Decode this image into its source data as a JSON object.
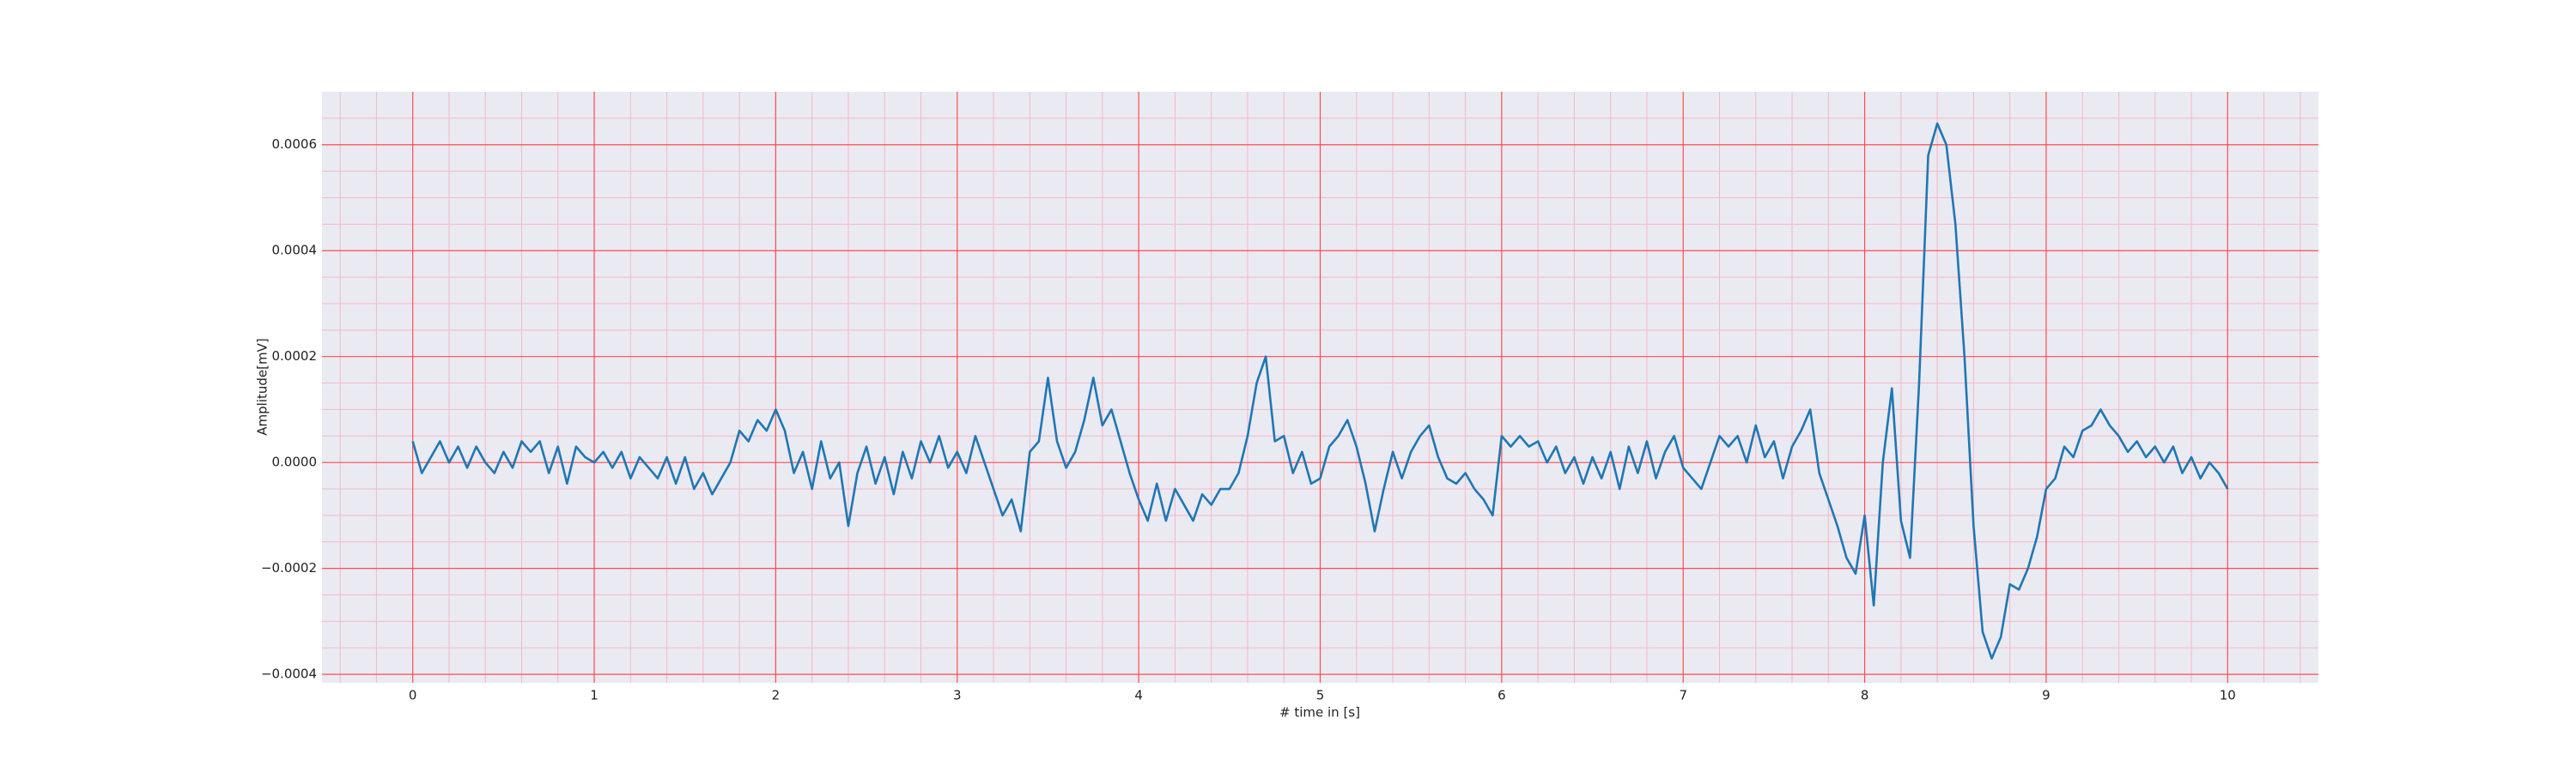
{
  "chart_data": {
    "type": "line",
    "xlabel": "# time in [s]",
    "ylabel": "Amplitude[mV]",
    "color": "#1f77b4",
    "background": "#eaeaf2",
    "grid": true,
    "grid_color": "#ff4d4d",
    "minor_grid_color": "#f7b6c6",
    "xlim": [
      -0.5,
      10.5
    ],
    "ylim": [
      -0.000416,
      0.0007
    ],
    "xticks": [
      0,
      1,
      2,
      3,
      4,
      5,
      6,
      7,
      8,
      9,
      10
    ],
    "yticks": [
      {
        "value": -0.0004,
        "label": "−0.0004"
      },
      {
        "value": -0.0002,
        "label": "−0.0002"
      },
      {
        "value": 0,
        "label": "0.0000"
      },
      0.0002,
      0.0004,
      0.0006
    ],
    "xminorticks": [
      -0.4,
      -0.2,
      0.2,
      0.4,
      0.6,
      0.8,
      1.2,
      1.4,
      1.6,
      1.8,
      2.2,
      2.4,
      2.6,
      2.8,
      3.2,
      3.4,
      3.6,
      3.8,
      4.2,
      4.4,
      4.6,
      4.8,
      5.2,
      5.4,
      5.6,
      5.8,
      6.2,
      6.4,
      6.6,
      6.8,
      7.2,
      7.4,
      7.6,
      7.8,
      8.2,
      8.4,
      8.6,
      8.8,
      9.2,
      9.4,
      9.6,
      9.8,
      10.2,
      10.4
    ],
    "yminorticks": [
      -0.00035,
      -0.0003,
      -0.00025,
      -0.00015,
      -0.0001,
      -5e-05,
      5e-05,
      0.0001,
      0.00015,
      0.00025,
      0.0003,
      0.00035,
      0.00045,
      0.0005,
      0.00055,
      0.00065
    ],
    "x": [
      0,
      0.05,
      0.1,
      0.15,
      0.2,
      0.25,
      0.3,
      0.35,
      0.4,
      0.45,
      0.5,
      0.55,
      0.6,
      0.65,
      0.7,
      0.75,
      0.8,
      0.85,
      0.9,
      0.95,
      1,
      1.05,
      1.1,
      1.15,
      1.2,
      1.25,
      1.3,
      1.35,
      1.4,
      1.45,
      1.5,
      1.55,
      1.6,
      1.65,
      1.7,
      1.75,
      1.8,
      1.85,
      1.9,
      1.95,
      2,
      2.05,
      2.1,
      2.15,
      2.2,
      2.25,
      2.3,
      2.35,
      2.4,
      2.45,
      2.5,
      2.55,
      2.6,
      2.65,
      2.7,
      2.75,
      2.8,
      2.85,
      2.9,
      2.95,
      3,
      3.05,
      3.1,
      3.15,
      3.2,
      3.25,
      3.3,
      3.35,
      3.4,
      3.45,
      3.5,
      3.55,
      3.6,
      3.65,
      3.7,
      3.75,
      3.8,
      3.85,
      3.9,
      3.95,
      4,
      4.05,
      4.1,
      4.15,
      4.2,
      4.25,
      4.3,
      4.35,
      4.4,
      4.45,
      4.5,
      4.55,
      4.6,
      4.65,
      4.7,
      4.75,
      4.8,
      4.85,
      4.9,
      4.95,
      5,
      5.05,
      5.1,
      5.15,
      5.2,
      5.25,
      5.3,
      5.35,
      5.4,
      5.45,
      5.5,
      5.55,
      5.6,
      5.65,
      5.7,
      5.75,
      5.8,
      5.85,
      5.9,
      5.95,
      6,
      6.05,
      6.1,
      6.15,
      6.2,
      6.25,
      6.3,
      6.35,
      6.4,
      6.45,
      6.5,
      6.55,
      6.6,
      6.65,
      6.7,
      6.75,
      6.8,
      6.85,
      6.9,
      6.95,
      7,
      7.05,
      7.1,
      7.15,
      7.2,
      7.25,
      7.3,
      7.35,
      7.4,
      7.45,
      7.5,
      7.55,
      7.6,
      7.65,
      7.7,
      7.75,
      7.8,
      7.85,
      7.9,
      7.95,
      8,
      8.05,
      8.1,
      8.15,
      8.2,
      8.25,
      8.3,
      8.35,
      8.4,
      8.45,
      8.5,
      8.55,
      8.6,
      8.65,
      8.7,
      8.75,
      8.8,
      8.85,
      8.9,
      8.95,
      9,
      9.05,
      9.1,
      9.15,
      9.2,
      9.25,
      9.3,
      9.35,
      9.4,
      9.45,
      9.5,
      9.55,
      9.6,
      9.65,
      9.7,
      9.75,
      9.8,
      9.85,
      9.9,
      9.95,
      10
    ],
    "values": [
      4e-05,
      -2e-05,
      1e-05,
      4e-05,
      0,
      3e-05,
      -1e-05,
      3e-05,
      0,
      -2e-05,
      2e-05,
      -1e-05,
      4e-05,
      2e-05,
      4e-05,
      -2e-05,
      3e-05,
      -4e-05,
      3e-05,
      1e-05,
      0,
      2e-05,
      -1e-05,
      2e-05,
      -3e-05,
      1e-05,
      -1e-05,
      -3e-05,
      1e-05,
      -4e-05,
      1e-05,
      -5e-05,
      -2e-05,
      -6e-05,
      -3e-05,
      0,
      6e-05,
      4e-05,
      8e-05,
      6e-05,
      0.0001,
      6e-05,
      -2e-05,
      2e-05,
      -5e-05,
      4e-05,
      -3e-05,
      0,
      -0.00012,
      -2e-05,
      3e-05,
      -4e-05,
      1e-05,
      -6e-05,
      2e-05,
      -3e-05,
      4e-05,
      0,
      5e-05,
      -1e-05,
      2e-05,
      -2e-05,
      5e-05,
      0,
      -5e-05,
      -0.0001,
      -7e-05,
      -0.00013,
      2e-05,
      4e-05,
      0.00016,
      4e-05,
      -1e-05,
      2e-05,
      8e-05,
      0.00016,
      7e-05,
      0.0001,
      4e-05,
      -2e-05,
      -7e-05,
      -0.00011,
      -4e-05,
      -0.00011,
      -5e-05,
      -8e-05,
      -0.00011,
      -6e-05,
      -8e-05,
      -5e-05,
      -5e-05,
      -2e-05,
      5e-05,
      0.00015,
      0.0002,
      4e-05,
      5e-05,
      -2e-05,
      2e-05,
      -4e-05,
      -3e-05,
      3e-05,
      5e-05,
      8e-05,
      3e-05,
      -4e-05,
      -0.00013,
      -5e-05,
      2e-05,
      -3e-05,
      2e-05,
      5e-05,
      7e-05,
      1e-05,
      -3e-05,
      -4e-05,
      -2e-05,
      -5e-05,
      -7e-05,
      -0.0001,
      5e-05,
      3e-05,
      5e-05,
      3e-05,
      4e-05,
      0,
      3e-05,
      -2e-05,
      1e-05,
      -4e-05,
      1e-05,
      -3e-05,
      2e-05,
      -5e-05,
      3e-05,
      -2e-05,
      4e-05,
      -3e-05,
      2e-05,
      5e-05,
      -1e-05,
      -3e-05,
      -5e-05,
      0,
      5e-05,
      3e-05,
      5e-05,
      0,
      7e-05,
      1e-05,
      4e-05,
      -3e-05,
      3e-05,
      6e-05,
      0.0001,
      -2e-05,
      -7e-05,
      -0.00012,
      -0.00018,
      -0.00021,
      -0.0001,
      -0.00027,
      0,
      0.00014,
      -0.00011,
      -0.00018,
      0.00015,
      0.00058,
      0.00064,
      0.0006,
      0.00045,
      0.0002,
      -0.00012,
      -0.00032,
      -0.00037,
      -0.00033,
      -0.00023,
      -0.00024,
      -0.0002,
      -0.00014,
      -5e-05,
      -3e-05,
      3e-05,
      1e-05,
      6e-05,
      7e-05,
      0.0001,
      7e-05,
      5e-05,
      2e-05,
      4e-05,
      1e-05,
      3e-05,
      0,
      3e-05,
      -2e-05,
      1e-05,
      -3e-05,
      0,
      -2e-05,
      -5e-05
    ]
  }
}
